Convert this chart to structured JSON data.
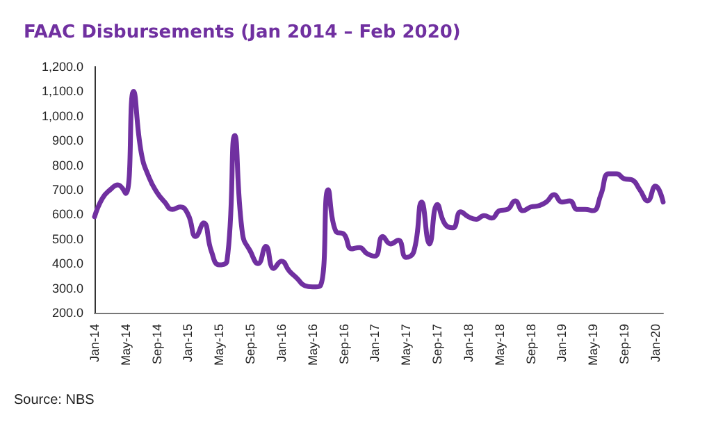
{
  "chart_data": {
    "type": "line",
    "title": "FAAC Disbursements (Jan 2014 – Feb 2020)",
    "categories": [
      "Jan-14",
      null,
      null,
      null,
      "May-14",
      null,
      null,
      null,
      "Sep-14",
      null,
      null,
      null,
      "Jan-15",
      null,
      null,
      null,
      "May-15",
      null,
      null,
      null,
      "Sep-15",
      null,
      null,
      null,
      "Jan-16",
      null,
      null,
      null,
      "May-16",
      null,
      null,
      null,
      "Sep-16",
      null,
      null,
      null,
      "Jan-17",
      null,
      null,
      null,
      "May-17",
      null,
      null,
      null,
      "Sep-17",
      null,
      null,
      null,
      "Jan-18",
      null,
      null,
      null,
      "May-18",
      null,
      null,
      null,
      "Sep-18",
      null,
      null,
      null,
      "Jan-19",
      null,
      null,
      null,
      "May-19",
      null,
      null,
      null,
      "Sep-19",
      null,
      null,
      null,
      "Jan-20",
      null
    ],
    "series": [
      {
        "color": "#7030a0",
        "values": [
          590,
          665,
          700,
          720,
          685,
          1100,
          850,
          750,
          690,
          650,
          620,
          630,
          600,
          510,
          565,
          450,
          395,
          410,
          920,
          520,
          450,
          400,
          470,
          380,
          410,
          370,
          340,
          310,
          305,
          310,
          700,
          530,
          520,
          460,
          465,
          440,
          430,
          510,
          480,
          495,
          425,
          450,
          650,
          480,
          640,
          560,
          545,
          610,
          590,
          580,
          595,
          585,
          615,
          620,
          655,
          615,
          630,
          635,
          650,
          680,
          650,
          655,
          620,
          620,
          615,
          680,
          765,
          765,
          745,
          740,
          700,
          655,
          715,
          650
        ]
      }
    ],
    "ylim": [
      200,
      1200
    ],
    "yticks": [
      {
        "value": 200,
        "label": "200.0"
      },
      {
        "value": 300,
        "label": "300.0"
      },
      {
        "value": 400,
        "label": "400.0"
      },
      {
        "value": 500,
        "label": "500.0"
      },
      {
        "value": 600,
        "label": "600.0"
      },
      {
        "value": 700,
        "label": "700.0"
      },
      {
        "value": 800,
        "label": "800.0"
      },
      {
        "value": 900,
        "label": "900.0"
      },
      {
        "value": 1000,
        "label": "1,000.0"
      },
      {
        "value": 1100,
        "label": "1,100.0"
      },
      {
        "value": 1200,
        "label": "1,200.0"
      }
    ],
    "grid": false,
    "marker": "none",
    "line_style": "solid",
    "annotations": [
      "Source: NBS"
    ]
  }
}
